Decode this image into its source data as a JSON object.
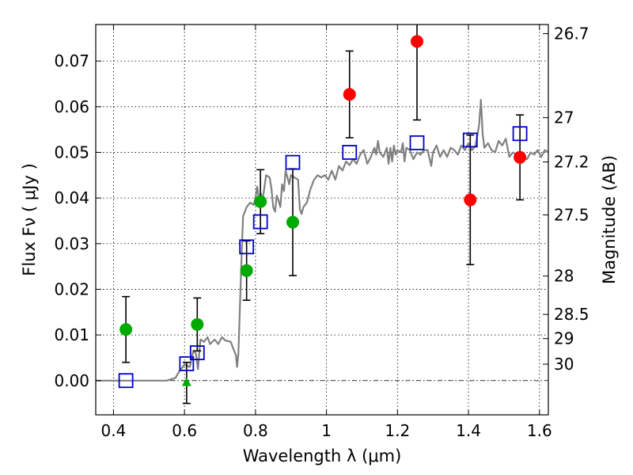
{
  "chart_data": {
    "type": "scatter",
    "xlabel": "Wavelength  λ (μm)",
    "ylabel": "Flux  Fν  ( μJy )",
    "y2label": "Magnitude (AB)",
    "xlim": [
      0.35,
      1.625
    ],
    "ylim": [
      -0.0075,
      0.078
    ],
    "x_ticks": [
      0.4,
      0.6,
      0.8,
      1.0,
      1.2,
      1.4,
      1.6
    ],
    "x_tick_labels": [
      "0.4",
      "0.6",
      "0.8",
      "1",
      "1.2",
      "1.4",
      "1.6"
    ],
    "y_ticks": [
      0.0,
      0.01,
      0.02,
      0.03,
      0.04,
      0.05,
      0.06,
      0.07
    ],
    "y_tick_labels": [
      "0.00",
      "0.01",
      "0.02",
      "0.03",
      "0.04",
      "0.05",
      "0.06",
      "0.07"
    ],
    "mag_ticks": [
      {
        "label": "26.7",
        "flux": 0.076
      },
      {
        "label": "27",
        "flux": 0.0576
      },
      {
        "label": "27.2",
        "flux": 0.0479
      },
      {
        "label": "27.5",
        "flux": 0.0363
      },
      {
        "label": "28",
        "flux": 0.0229
      },
      {
        "label": "28.5",
        "flux": 0.0145
      },
      {
        "label": "29",
        "flux": 0.0092
      },
      {
        "label": "30",
        "flux": 0.0036
      }
    ],
    "grid": true,
    "colors": {
      "detected": "#00aa00",
      "red_points": "#ff0000",
      "model_points": "#0000cc",
      "sed_line": "#808080",
      "error_bars": "#000000"
    },
    "series": [
      {
        "marker": "circle",
        "color": "#00aa00",
        "points": [
          {
            "x": 0.435,
            "y": 0.0112,
            "err": 0.0072
          },
          {
            "x": 0.636,
            "y": 0.0123,
            "err": 0.0058
          },
          {
            "x": 0.775,
            "y": 0.0241,
            "err": 0.0065
          },
          {
            "x": 0.814,
            "y": 0.0392,
            "err": 0.007
          },
          {
            "x": 0.905,
            "y": 0.0347,
            "err": 0.0117
          }
        ]
      },
      {
        "marker": "triangle",
        "color": "#00aa00",
        "points": [
          {
            "x": 0.606,
            "y": -0.0005,
            "err": 0.0045
          }
        ]
      },
      {
        "marker": "circle",
        "color": "#ff0000",
        "points": [
          {
            "x": 1.065,
            "y": 0.0627,
            "err": 0.0095
          },
          {
            "x": 1.255,
            "y": 0.0743,
            "err": 0.0172
          },
          {
            "x": 1.405,
            "y": 0.0396,
            "err": 0.0142
          },
          {
            "x": 1.545,
            "y": 0.0489,
            "err": 0.0093
          }
        ]
      },
      {
        "marker": "square",
        "color": "#0000cc",
        "points": [
          {
            "x": 0.435,
            "y": 0.0
          },
          {
            "x": 0.606,
            "y": 0.0037
          },
          {
            "x": 0.636,
            "y": 0.0061
          },
          {
            "x": 0.775,
            "y": 0.0293
          },
          {
            "x": 0.814,
            "y": 0.0348
          },
          {
            "x": 0.905,
            "y": 0.0478
          },
          {
            "x": 1.065,
            "y": 0.05
          },
          {
            "x": 1.255,
            "y": 0.0521
          },
          {
            "x": 1.405,
            "y": 0.0527
          },
          {
            "x": 1.545,
            "y": 0.0541
          }
        ]
      },
      {
        "marker": "line",
        "color": "#808080",
        "points": [
          [
            0.35,
            0.0
          ],
          [
            0.55,
            0.0
          ],
          [
            0.575,
            0.0006
          ],
          [
            0.585,
            0.002
          ],
          [
            0.6,
            0.0035
          ],
          [
            0.615,
            0.003
          ],
          [
            0.625,
            0.0065
          ],
          [
            0.632,
            0.006
          ],
          [
            0.638,
            0.0025
          ],
          [
            0.645,
            0.009
          ],
          [
            0.655,
            0.0085
          ],
          [
            0.665,
            0.0095
          ],
          [
            0.672,
            0.008
          ],
          [
            0.685,
            0.009
          ],
          [
            0.695,
            0.008
          ],
          [
            0.705,
            0.0095
          ],
          [
            0.715,
            0.0088
          ],
          [
            0.73,
            0.0085
          ],
          [
            0.745,
            0.0055
          ],
          [
            0.748,
            0.003
          ],
          [
            0.752,
            0.006
          ],
          [
            0.76,
            0.025
          ],
          [
            0.765,
            0.036
          ],
          [
            0.775,
            0.038
          ],
          [
            0.785,
            0.039
          ],
          [
            0.795,
            0.0385
          ],
          [
            0.8,
            0.04
          ],
          [
            0.805,
            0.0425
          ],
          [
            0.81,
            0.0395
          ],
          [
            0.815,
            0.041
          ],
          [
            0.82,
            0.0395
          ],
          [
            0.83,
            0.045
          ],
          [
            0.84,
            0.0445
          ],
          [
            0.845,
            0.042
          ],
          [
            0.85,
            0.038
          ],
          [
            0.855,
            0.037
          ],
          [
            0.86,
            0.0405
          ],
          [
            0.865,
            0.0395
          ],
          [
            0.87,
            0.038
          ],
          [
            0.875,
            0.043
          ],
          [
            0.88,
            0.0415
          ],
          [
            0.885,
            0.046
          ],
          [
            0.89,
            0.0445
          ],
          [
            0.895,
            0.043
          ],
          [
            0.9,
            0.045
          ],
          [
            0.91,
            0.0445
          ],
          [
            0.92,
            0.044
          ],
          [
            0.925,
            0.0375
          ],
          [
            0.93,
            0.0365
          ],
          [
            0.935,
            0.038
          ],
          [
            0.945,
            0.039
          ],
          [
            0.955,
            0.042
          ],
          [
            0.965,
            0.044
          ],
          [
            0.975,
            0.045
          ],
          [
            0.985,
            0.0445
          ],
          [
            0.995,
            0.045
          ],
          [
            1.005,
            0.044
          ],
          [
            1.015,
            0.046
          ],
          [
            1.025,
            0.044
          ],
          [
            1.035,
            0.047
          ],
          [
            1.045,
            0.046
          ],
          [
            1.055,
            0.048
          ],
          [
            1.065,
            0.0472
          ],
          [
            1.075,
            0.0485
          ],
          [
            1.085,
            0.0475
          ],
          [
            1.095,
            0.0495
          ],
          [
            1.105,
            0.0505
          ],
          [
            1.115,
            0.0475
          ],
          [
            1.125,
            0.049
          ],
          [
            1.135,
            0.051
          ],
          [
            1.14,
            0.0495
          ],
          [
            1.145,
            0.0525
          ],
          [
            1.15,
            0.05
          ],
          [
            1.16,
            0.049
          ],
          [
            1.17,
            0.051
          ],
          [
            1.175,
            0.0475
          ],
          [
            1.18,
            0.051
          ],
          [
            1.185,
            0.048
          ],
          [
            1.19,
            0.0515
          ],
          [
            1.195,
            0.0495
          ],
          [
            1.2,
            0.0505
          ],
          [
            1.21,
            0.05
          ],
          [
            1.215,
            0.052
          ],
          [
            1.22,
            0.048
          ],
          [
            1.225,
            0.051
          ],
          [
            1.235,
            0.0505
          ],
          [
            1.245,
            0.0485
          ],
          [
            1.255,
            0.05
          ],
          [
            1.265,
            0.0495
          ],
          [
            1.275,
            0.0505
          ],
          [
            1.285,
            0.0505
          ],
          [
            1.295,
            0.047
          ],
          [
            1.3,
            0.05
          ],
          [
            1.31,
            0.0515
          ],
          [
            1.32,
            0.049
          ],
          [
            1.33,
            0.0505
          ],
          [
            1.34,
            0.049
          ],
          [
            1.35,
            0.051
          ],
          [
            1.36,
            0.0505
          ],
          [
            1.37,
            0.0495
          ],
          [
            1.38,
            0.0515
          ],
          [
            1.39,
            0.0505
          ],
          [
            1.4,
            0.052
          ],
          [
            1.41,
            0.0505
          ],
          [
            1.42,
            0.0515
          ],
          [
            1.43,
            0.056
          ],
          [
            1.435,
            0.0615
          ],
          [
            1.44,
            0.054
          ],
          [
            1.445,
            0.051
          ],
          [
            1.455,
            0.052
          ],
          [
            1.465,
            0.0505
          ],
          [
            1.475,
            0.05
          ],
          [
            1.485,
            0.0525
          ],
          [
            1.495,
            0.0515
          ],
          [
            1.505,
            0.053
          ],
          [
            1.515,
            0.049
          ],
          [
            1.525,
            0.05
          ],
          [
            1.535,
            0.0495
          ],
          [
            1.545,
            0.048
          ],
          [
            1.555,
            0.049
          ],
          [
            1.565,
            0.0485
          ],
          [
            1.575,
            0.05
          ],
          [
            1.585,
            0.0495
          ],
          [
            1.595,
            0.0505
          ],
          [
            1.605,
            0.049
          ],
          [
            1.615,
            0.0505
          ],
          [
            1.625,
            0.05
          ]
        ]
      }
    ]
  }
}
